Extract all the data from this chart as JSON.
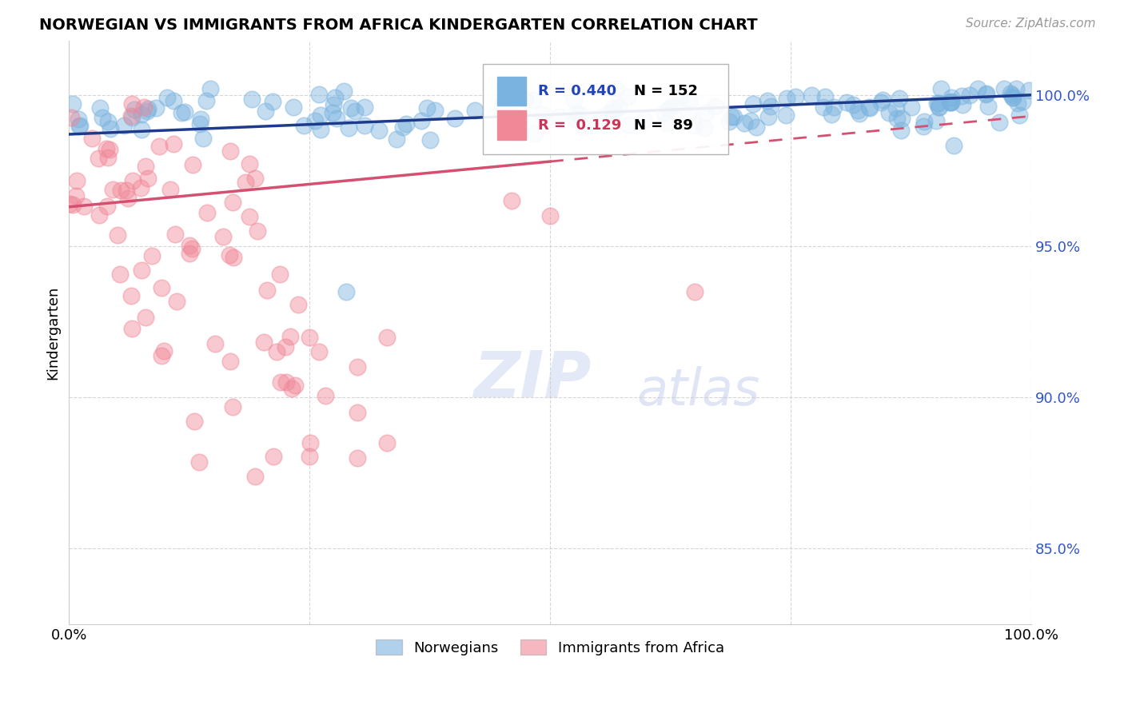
{
  "title": "NORWEGIAN VS IMMIGRANTS FROM AFRICA KINDERGARTEN CORRELATION CHART",
  "source_text": "Source: ZipAtlas.com",
  "ylabel": "Kindergarten",
  "xlim": [
    0.0,
    1.0
  ],
  "ylim": [
    0.825,
    1.018
  ],
  "yticks": [
    0.85,
    0.9,
    0.95,
    1.0
  ],
  "ytick_labels": [
    "85.0%",
    "90.0%",
    "95.0%",
    "100.0%"
  ],
  "legend_r1": "R = 0.440",
  "legend_n1": "N = 152",
  "legend_r2": "R =  0.129",
  "legend_n2": "N =  89",
  "color_norwegian": "#7ab3df",
  "color_immigrant": "#f08898",
  "color_line_norwegian": "#1e3a8a",
  "color_line_immigrant": "#d45070",
  "watermark_zip": "ZIP",
  "watermark_atlas": "atlas",
  "background_color": "#ffffff"
}
